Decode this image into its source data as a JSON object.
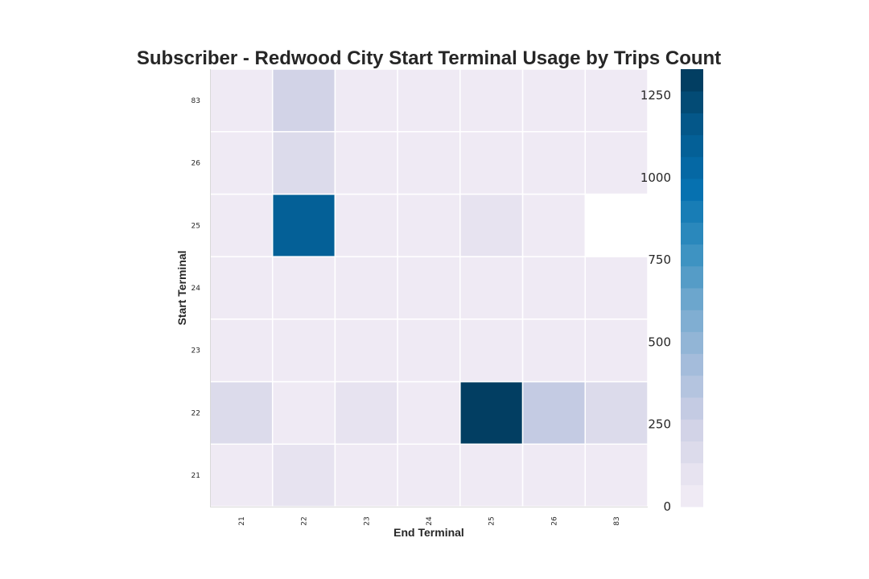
{
  "chart_data": {
    "type": "heatmap",
    "title": "Subscriber - Redwood City Start Terminal Usage by Trips Count",
    "xlabel": "End Terminal",
    "ylabel": "Start Terminal",
    "x_categories": [
      "21",
      "22",
      "23",
      "24",
      "25",
      "26",
      "83"
    ],
    "y_categories": [
      "21",
      "22",
      "23",
      "24",
      "25",
      "26",
      "83"
    ],
    "values": [
      [
        3,
        110,
        2,
        0,
        0,
        0,
        1
      ],
      [
        175,
        4,
        80,
        35,
        1330,
        320,
        175
      ],
      [
        5,
        35,
        45,
        0,
        45,
        5,
        5
      ],
      [
        0,
        35,
        5,
        0,
        0,
        0,
        5
      ],
      [
        0,
        1080,
        35,
        5,
        75,
        5,
        null
      ],
      [
        5,
        160,
        5,
        0,
        5,
        5,
        5
      ],
      [
        5,
        220,
        5,
        5,
        5,
        5,
        5
      ]
    ],
    "colorbar": {
      "range": [
        0,
        1330
      ],
      "ticks": [
        0,
        250,
        500,
        750,
        1000,
        1250
      ],
      "tick_labels": [
        "0",
        "250",
        "500",
        "750",
        "1000",
        "1250"
      ],
      "levels": 20
    },
    "colormap": "PuBu",
    "grid": false,
    "cell_separator_color": "#ffffff",
    "missing_color": "#ffffff"
  }
}
